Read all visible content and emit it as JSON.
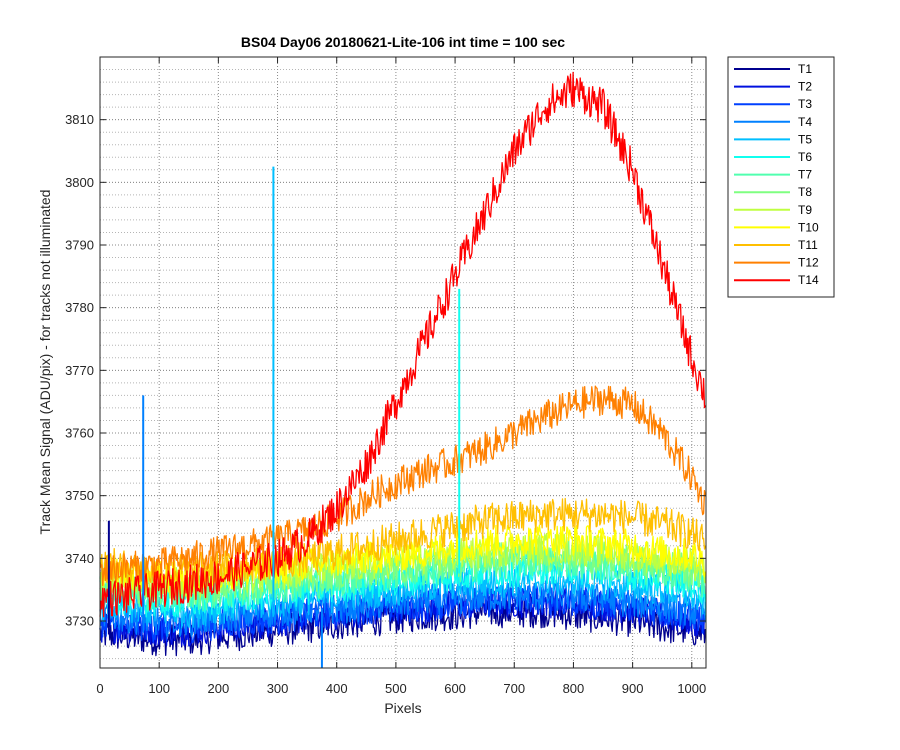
{
  "chart_data": {
    "type": "line",
    "title": "BS04 Day06 20180621-Lite-106 int time = 100 sec",
    "xlabel": "Pixels",
    "ylabel": "Track Mean Signal (ADU/pix) - for tracks not illuminated",
    "xlim": [
      0,
      1024
    ],
    "ylim": [
      3722.5,
      3820
    ],
    "x_ticks": [
      0,
      100,
      200,
      300,
      400,
      500,
      600,
      700,
      800,
      900,
      1000
    ],
    "y_ticks": [
      3730,
      3740,
      3750,
      3760,
      3770,
      3780,
      3790,
      3800,
      3810
    ],
    "grid": "major and minor, dotted",
    "legend_position": "outside-right",
    "x_points": [
      0,
      50,
      100,
      150,
      200,
      250,
      300,
      350,
      400,
      450,
      500,
      550,
      600,
      650,
      700,
      750,
      800,
      850,
      900,
      950,
      1000,
      1023
    ],
    "series": [
      {
        "name": "T1",
        "color": "#00008f",
        "values": [
          3728,
          3727.5,
          3727,
          3727,
          3727.5,
          3728,
          3728.5,
          3729,
          3729.5,
          3730,
          3730.5,
          3731,
          3731,
          3731.5,
          3731.5,
          3731.5,
          3731,
          3730.5,
          3730,
          3729,
          3728.5,
          3728
        ]
      },
      {
        "name": "T2",
        "color": "#0010df",
        "values": [
          3729,
          3729,
          3728.5,
          3728.5,
          3729,
          3729.5,
          3730,
          3730.5,
          3731,
          3731.5,
          3732,
          3732,
          3732.5,
          3733,
          3733,
          3733,
          3733,
          3732.5,
          3732,
          3731,
          3730,
          3729.5
        ]
      },
      {
        "name": "T3",
        "color": "#0040ff",
        "values": [
          3730,
          3729.5,
          3729,
          3729,
          3729.5,
          3730,
          3730.5,
          3731,
          3731.5,
          3732,
          3732,
          3732.5,
          3733,
          3733,
          3733.5,
          3733.5,
          3733,
          3733,
          3732.5,
          3731.5,
          3731,
          3730
        ]
      },
      {
        "name": "T4",
        "color": "#0080ff",
        "values": [
          3731,
          3730.5,
          3730,
          3730,
          3730.5,
          3731,
          3731.5,
          3732,
          3732,
          3732.5,
          3733,
          3733.5,
          3733.5,
          3734,
          3734,
          3734,
          3734,
          3733.5,
          3733,
          3732.5,
          3731.5,
          3731
        ]
      },
      {
        "name": "T5",
        "color": "#00bfff",
        "values": [
          3732.5,
          3732,
          3731.5,
          3731.5,
          3732,
          3732.5,
          3733,
          3733.5,
          3734,
          3734.5,
          3735,
          3735.5,
          3736,
          3736,
          3736.5,
          3736.5,
          3736.5,
          3736,
          3735.5,
          3735,
          3734,
          3733
        ]
      },
      {
        "name": "T6",
        "color": "#10ffef",
        "values": [
          3734,
          3733.5,
          3733,
          3733,
          3733.5,
          3734,
          3734.5,
          3735,
          3735.5,
          3736,
          3736.5,
          3737,
          3737.5,
          3738,
          3738,
          3738.5,
          3738.5,
          3738,
          3737.5,
          3737,
          3736,
          3735
        ]
      },
      {
        "name": "T7",
        "color": "#50ffaf",
        "values": [
          3735,
          3734.5,
          3734,
          3734,
          3734.5,
          3735,
          3735.5,
          3736,
          3736.5,
          3737,
          3737.5,
          3738,
          3738.5,
          3739,
          3739.5,
          3739.5,
          3739.5,
          3739,
          3738.5,
          3738,
          3737,
          3736
        ]
      },
      {
        "name": "T8",
        "color": "#7fff80",
        "values": [
          3736,
          3735.5,
          3735,
          3735,
          3735.5,
          3736,
          3736.5,
          3737,
          3737.5,
          3738,
          3738.5,
          3739,
          3739.5,
          3740,
          3740.5,
          3740.5,
          3740.5,
          3740,
          3739.5,
          3739,
          3738,
          3737
        ]
      },
      {
        "name": "T9",
        "color": "#bfff40",
        "values": [
          3737,
          3736.5,
          3736,
          3736,
          3736.5,
          3737,
          3737.5,
          3738,
          3738.5,
          3739,
          3739.5,
          3740,
          3740.5,
          3741,
          3741.5,
          3741.5,
          3741.5,
          3741,
          3740.5,
          3740,
          3739,
          3738
        ]
      },
      {
        "name": "T10",
        "color": "#ffff00",
        "values": [
          3738,
          3737.5,
          3737,
          3737,
          3737.5,
          3738,
          3738.5,
          3739,
          3739.5,
          3740,
          3740.5,
          3741,
          3742,
          3742.5,
          3743,
          3743,
          3743,
          3742.5,
          3742,
          3741,
          3740.5,
          3739.5
        ]
      },
      {
        "name": "T11",
        "color": "#ffbf00",
        "values": [
          3739,
          3738.5,
          3738,
          3738,
          3738.5,
          3739,
          3739.5,
          3740,
          3741,
          3742,
          3743,
          3744,
          3745,
          3746,
          3746.5,
          3747,
          3747,
          3747,
          3746.5,
          3745.5,
          3744,
          3742.5
        ]
      },
      {
        "name": "T12",
        "color": "#ff8000",
        "values": [
          3738,
          3738.5,
          3739,
          3740,
          3741,
          3742,
          3743,
          3744.5,
          3746.5,
          3749.5,
          3752,
          3754,
          3755.5,
          3757.5,
          3760,
          3762.5,
          3764.5,
          3765.5,
          3764.5,
          3760,
          3753,
          3748.5
        ]
      },
      {
        "name": "T14",
        "color": "#ff0000",
        "values": [
          3733.5,
          3734,
          3735,
          3736,
          3737,
          3738.5,
          3740,
          3743,
          3748,
          3755,
          3765,
          3775,
          3785,
          3795,
          3805,
          3812,
          3815,
          3812,
          3802,
          3787,
          3772,
          3766
        ]
      }
    ],
    "spikes": [
      {
        "series": "T1",
        "x": 15,
        "y": 3746
      },
      {
        "series": "T4",
        "x": 73,
        "y": 3766
      },
      {
        "series": "T5",
        "x": 293,
        "y": 3802.5
      },
      {
        "series": "T6",
        "x": 607,
        "y": 3783
      },
      {
        "series": "T4",
        "x": 375,
        "y": 3722.5
      }
    ]
  }
}
